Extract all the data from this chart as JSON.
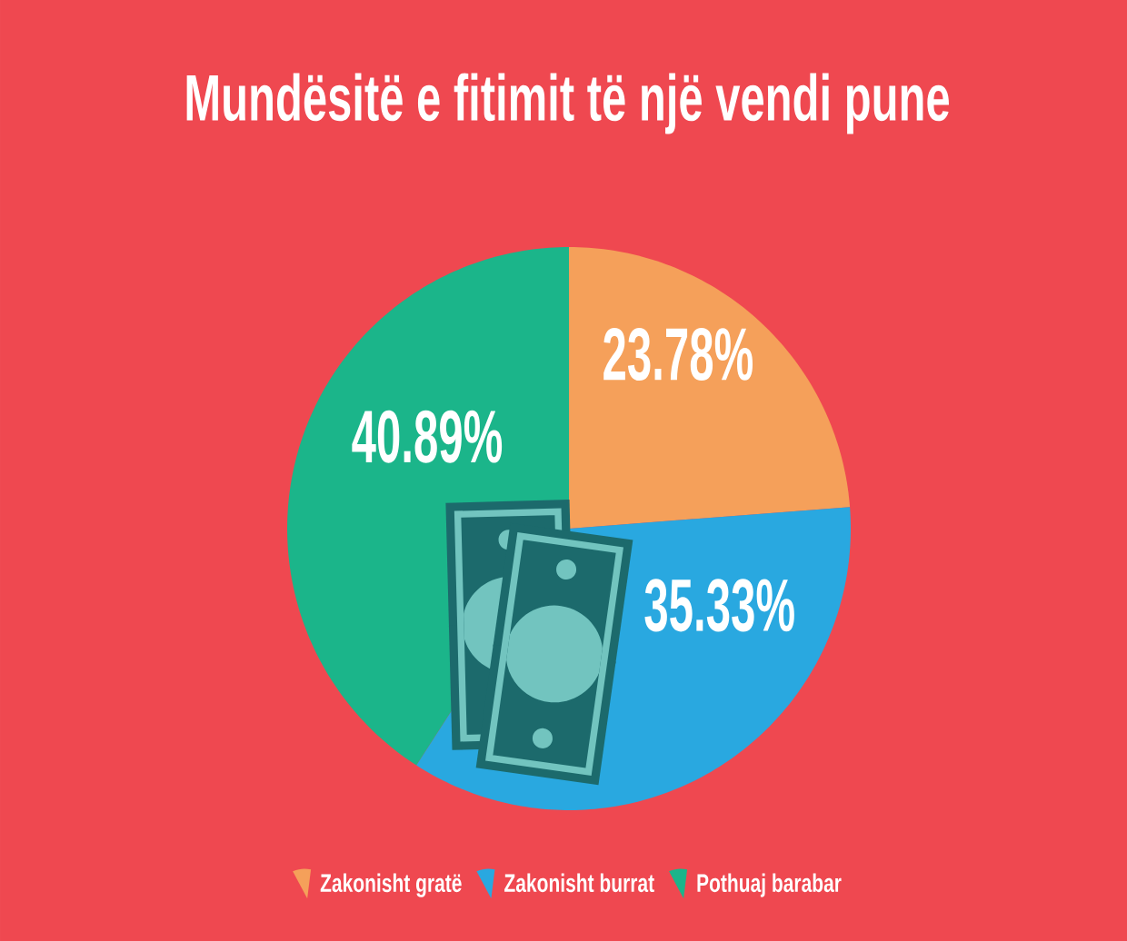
{
  "chart_data": {
    "type": "pie",
    "title": "Mundësitë e fitimit të një vendi pune",
    "categories": [
      "Zakonisht gratë",
      "Zakonisht burrat",
      "Pothuaj barabar"
    ],
    "values": [
      23.78,
      35.33,
      40.89
    ],
    "colors": [
      "#f5a05a",
      "#29a8e0",
      "#1bb58a"
    ],
    "value_labels": [
      "23.78%",
      "35.33%",
      "40.89%"
    ],
    "legend": "bottom"
  }
}
